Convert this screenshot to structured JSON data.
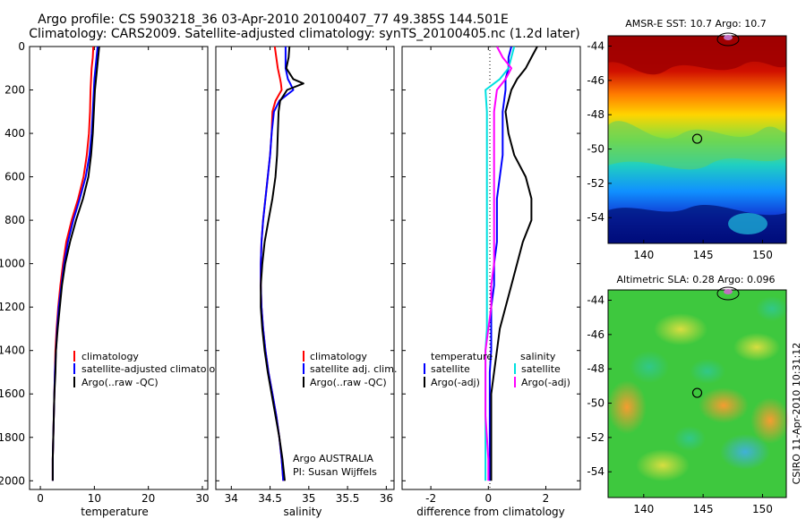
{
  "title": {
    "line1": "Argo profile: CS 5903218_36 03-Apr-2010 20100407_77 49.385S 144.501E",
    "line2": "Climatology: CARS2009. Satellite-adjusted climatology: synTS_20100405.nc (1.2d later)"
  },
  "credit": "CSIRO 11-Apr-2010 10:31:12",
  "colors": {
    "red": "#ff0000",
    "blue": "#0000ff",
    "black": "#000000",
    "cyan": "#00e0e0",
    "magenta": "#ff00ff"
  },
  "chart_data": [
    {
      "type": "line",
      "name": "temperature-profile",
      "xlabel": "temperature",
      "xlim": [
        -2,
        31
      ],
      "ylim": [
        0,
        2040
      ],
      "xticks": [
        "0",
        "10",
        "20",
        "30"
      ],
      "yticks": [
        "0",
        "200",
        "400",
        "600",
        "800",
        "1000",
        "1200",
        "1400",
        "1600",
        "1800",
        "2000"
      ],
      "depth": [
        0,
        50,
        100,
        150,
        200,
        300,
        400,
        500,
        600,
        700,
        800,
        900,
        1000,
        1100,
        1200,
        1300,
        1400,
        1500,
        1600,
        1700,
        1800,
        1900,
        2000
      ],
      "series": [
        {
          "name": "climatology",
          "color": "#ff0000",
          "values": [
            9.8,
            9.7,
            9.5,
            9.4,
            9.3,
            9.2,
            9.0,
            8.6,
            8.0,
            7.0,
            5.8,
            4.8,
            4.2,
            3.7,
            3.3,
            3.0,
            2.8,
            2.7,
            2.6,
            2.5,
            2.4,
            2.3,
            2.3
          ]
        },
        {
          "name": "satellite-adjusted climatology",
          "color": "#0000ff",
          "values": [
            10.6,
            10.4,
            10.2,
            10.0,
            9.9,
            9.7,
            9.5,
            9.1,
            8.4,
            7.3,
            6.1,
            5.1,
            4.4,
            3.9,
            3.4,
            3.1,
            2.9,
            2.7,
            2.6,
            2.5,
            2.4,
            2.3,
            2.3
          ]
        },
        {
          "name": "Argo(..raw -QC)",
          "color": "#000000",
          "values": [
            10.9,
            10.7,
            10.5,
            10.3,
            10.1,
            9.9,
            9.7,
            9.4,
            8.9,
            7.9,
            6.6,
            5.5,
            4.6,
            4.0,
            3.6,
            3.2,
            2.9,
            2.8,
            2.6,
            2.5,
            2.4,
            2.3,
            2.3
          ]
        }
      ],
      "legend": [
        "climatology",
        "satellite-adjusted climatology",
        "Argo(..raw -QC)"
      ]
    },
    {
      "type": "line",
      "name": "salinity-profile",
      "xlabel": "salinity",
      "xlim": [
        33.8,
        36.1
      ],
      "ylim": [
        0,
        2040
      ],
      "xticks": [
        "34",
        "34.5",
        "35",
        "35.5",
        "36"
      ],
      "depth": [
        0,
        50,
        100,
        150,
        170,
        200,
        250,
        300,
        400,
        500,
        600,
        700,
        800,
        900,
        1000,
        1100,
        1200,
        1300,
        1400,
        1500,
        1600,
        1700,
        1800,
        1900,
        2000
      ],
      "series": [
        {
          "name": "climatology",
          "color": "#ff0000",
          "values": [
            34.56,
            34.58,
            34.6,
            34.63,
            34.64,
            34.65,
            34.57,
            34.53,
            34.52,
            34.5,
            34.47,
            34.44,
            34.41,
            34.39,
            34.38,
            34.38,
            34.39,
            34.41,
            34.44,
            34.48,
            34.53,
            34.58,
            34.62,
            34.65,
            34.67
          ]
        },
        {
          "name": "satellite adj. clim.",
          "color": "#0000ff",
          "values": [
            34.7,
            34.7,
            34.7,
            34.73,
            34.76,
            34.8,
            34.62,
            34.55,
            34.52,
            34.5,
            34.47,
            34.44,
            34.41,
            34.39,
            34.38,
            34.38,
            34.39,
            34.41,
            34.44,
            34.48,
            34.53,
            34.58,
            34.62,
            34.65,
            34.67
          ]
        },
        {
          "name": "Argo(..raw -QC)",
          "color": "#000000",
          "values": [
            34.75,
            34.74,
            34.71,
            34.8,
            34.93,
            34.72,
            34.63,
            34.61,
            34.6,
            34.59,
            34.57,
            34.53,
            34.48,
            34.43,
            34.4,
            34.38,
            34.38,
            34.4,
            34.43,
            34.47,
            34.52,
            34.57,
            34.62,
            34.66,
            34.69
          ]
        }
      ],
      "legend": [
        "climatology",
        "satellite adj. clim.",
        "Argo(..raw -QC)"
      ],
      "annotation": [
        "Argo AUSTRALIA",
        "PI: Susan Wijffels"
      ]
    },
    {
      "type": "line",
      "name": "difference-profile",
      "xlabel": "difference from climatology",
      "xlim": [
        -3,
        3.2
      ],
      "ylim": [
        0,
        2040
      ],
      "xticks": [
        "-2",
        "0",
        "2"
      ],
      "depth": [
        0,
        50,
        100,
        150,
        200,
        300,
        400,
        500,
        600,
        700,
        800,
        900,
        1000,
        1100,
        1200,
        1300,
        1400,
        1500,
        1600,
        1700,
        1800,
        1900,
        2000
      ],
      "series": [
        {
          "name": "temperature satellite",
          "color": "#0000ff",
          "values": [
            0.8,
            0.7,
            0.7,
            0.6,
            0.6,
            0.5,
            0.5,
            0.5,
            0.4,
            0.3,
            0.3,
            0.3,
            0.2,
            0.2,
            0.1,
            0.1,
            0.1,
            0.05,
            0.05,
            0.05,
            0.05,
            0.05,
            0.05
          ]
        },
        {
          "name": "temperature Argo(-adj)",
          "color": "#000000",
          "values": [
            1.7,
            1.5,
            1.3,
            1.0,
            0.8,
            0.6,
            0.7,
            0.9,
            1.3,
            1.5,
            1.5,
            1.2,
            1.0,
            0.8,
            0.6,
            0.4,
            0.3,
            0.2,
            0.1,
            0.1,
            0.1,
            0.1,
            0.1
          ]
        },
        {
          "name": "salinity satellite",
          "color": "#00e0e0",
          "values": [
            0.9,
            0.8,
            0.7,
            0.4,
            -0.1,
            -0.05,
            -0.05,
            -0.05,
            -0.05,
            -0.05,
            -0.05,
            -0.05,
            -0.05,
            -0.05,
            -0.05,
            -0.05,
            -0.1,
            -0.1,
            -0.1,
            -0.1,
            -0.1,
            -0.1,
            -0.1
          ]
        },
        {
          "name": "salinity Argo(-adj)",
          "color": "#ff00ff",
          "values": [
            0.3,
            0.5,
            0.8,
            0.6,
            0.3,
            0.2,
            0.2,
            0.2,
            0.2,
            0.2,
            0.2,
            0.2,
            0.2,
            0.1,
            0.1,
            0.0,
            -0.1,
            -0.1,
            -0.1,
            -0.1,
            -0.05,
            0.0,
            0.0
          ]
        }
      ],
      "legend": {
        "temperature_header": "temperature",
        "salinity_header": "salinity",
        "temperature": [
          "satellite",
          "Argo(-adj)"
        ],
        "salinity": [
          "satellite",
          "Argo(-adj)"
        ]
      }
    },
    {
      "type": "heatmap",
      "name": "sst-map",
      "title": "AMSR-E SST: 10.7 Argo: 10.7",
      "xlim": [
        137,
        152
      ],
      "ylim": [
        -55.5,
        -43.4
      ],
      "xticks": [
        "140",
        "145",
        "150"
      ],
      "yticks": [
        "-44",
        "-46",
        "-48",
        "-50",
        "-52",
        "-54"
      ],
      "float_position": {
        "lon": 144.5,
        "lat": -49.4
      }
    },
    {
      "type": "heatmap",
      "name": "sla-map",
      "title": "Altimetric SLA: 0.28 Argo: 0.096",
      "xlim": [
        137,
        152
      ],
      "ylim": [
        -55.5,
        -43.4
      ],
      "xticks": [
        "140",
        "145",
        "150"
      ],
      "yticks": [
        "-44",
        "-46",
        "-48",
        "-50",
        "-52",
        "-54"
      ],
      "float_position": {
        "lon": 144.5,
        "lat": -49.4
      }
    }
  ]
}
